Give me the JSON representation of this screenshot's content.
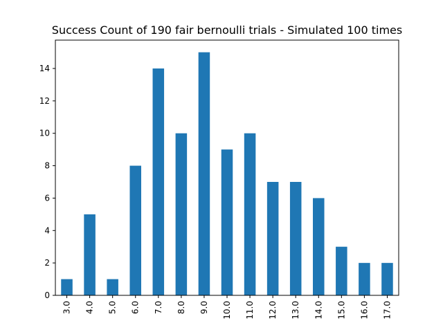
{
  "chart_data": {
    "type": "bar",
    "title": "Success Count of 190 fair bernoulli trials - Simulated 100 times",
    "xlabel": "",
    "ylabel": "",
    "categories": [
      "3.0",
      "4.0",
      "5.0",
      "6.0",
      "7.0",
      "8.0",
      "9.0",
      "10.0",
      "11.0",
      "12.0",
      "13.0",
      "14.0",
      "15.0",
      "16.0",
      "17.0"
    ],
    "values": [
      1,
      5,
      1,
      8,
      14,
      10,
      15,
      9,
      10,
      7,
      7,
      6,
      3,
      2,
      2
    ],
    "ylim": [
      0,
      15.75
    ],
    "yticks": [
      0,
      2,
      4,
      6,
      8,
      10,
      12,
      14
    ],
    "bar_color": "#1f77b4",
    "grid": false,
    "legend": "none"
  }
}
